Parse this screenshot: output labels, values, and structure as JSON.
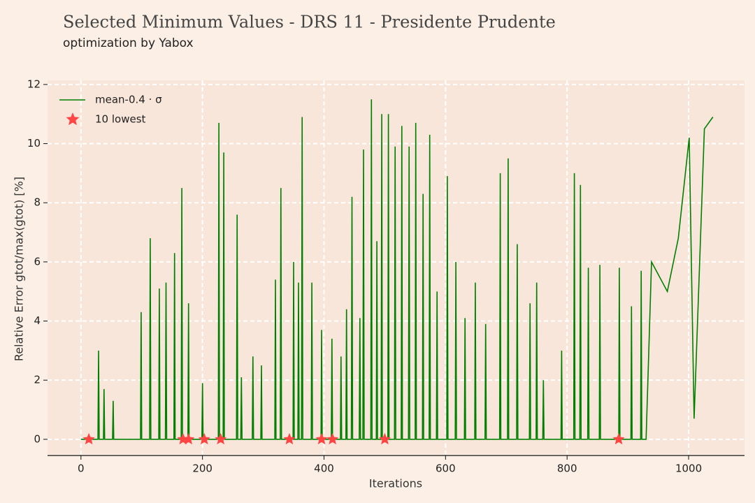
{
  "chart_data": {
    "type": "line",
    "title": "Selected Minimum Values - DRS 11 - Presidente Prudente",
    "subtitle": "optimization by Yabox",
    "x_label": "Iterations",
    "y_label": "Relative Error gtot/max(gtot) [%]",
    "xlim": [
      -55,
      1092
    ],
    "ylim": [
      -0.5,
      12.14
    ],
    "xticks": [
      0,
      200,
      400,
      600,
      800,
      1000
    ],
    "yticks": [
      0,
      2,
      4,
      6,
      8,
      10,
      12
    ],
    "grid": true,
    "legend": "upper left",
    "series": [
      {
        "name": "mean-0.4 · σ",
        "color": "#008000",
        "kind": "line",
        "x": [
          0,
          28,
          29,
          30,
          37,
          38,
          39,
          52,
          53,
          54,
          98,
          99,
          100,
          113,
          114,
          115,
          128,
          129,
          130,
          139,
          140,
          141,
          153,
          154,
          155,
          165,
          166,
          167,
          176,
          177,
          178,
          199,
          200,
          201,
          226,
          227,
          228,
          234,
          235,
          236,
          256,
          257,
          258,
          263,
          264,
          265,
          282,
          283,
          284,
          296,
          297,
          298,
          319,
          320,
          321,
          328,
          329,
          330,
          349,
          350,
          351,
          357,
          358,
          359,
          363,
          364,
          365,
          379,
          380,
          381,
          395,
          396,
          397,
          412,
          413,
          414,
          427,
          428,
          429,
          436,
          437,
          438,
          445,
          446,
          447,
          458,
          459,
          460,
          464,
          465,
          466,
          477,
          478,
          479,
          486,
          487,
          488,
          494,
          495,
          496,
          505,
          506,
          507,
          516,
          517,
          518,
          527,
          528,
          529,
          539,
          540,
          541,
          550,
          551,
          552,
          562,
          563,
          564,
          573,
          574,
          575,
          585,
          586,
          587,
          602,
          603,
          604,
          616,
          617,
          618,
          631,
          632,
          633,
          648,
          649,
          650,
          665,
          666,
          667,
          689,
          690,
          691,
          702,
          703,
          704,
          717,
          718,
          719,
          738,
          739,
          740,
          749,
          750,
          751,
          760,
          761,
          762,
          790,
          791,
          792,
          811,
          812,
          813,
          821,
          822,
          823,
          834,
          835,
          836,
          853,
          854,
          855,
          885,
          886,
          887,
          905,
          906,
          907,
          921,
          922,
          923,
          930,
          939,
          965,
          983,
          1001,
          1009,
          1026,
          1040
        ],
        "values": [
          0,
          0,
          3.0,
          0,
          0,
          1.7,
          0,
          0,
          1.3,
          0,
          0,
          4.3,
          0,
          0,
          6.8,
          0,
          0,
          5.1,
          0,
          0,
          5.3,
          0,
          0,
          6.3,
          0,
          0,
          8.5,
          0,
          0,
          4.6,
          0,
          0,
          1.9,
          0,
          0,
          10.7,
          0,
          0,
          9.7,
          0,
          0,
          7.6,
          0,
          0,
          2.1,
          0,
          0,
          2.8,
          0,
          0,
          2.5,
          0,
          0,
          5.4,
          0,
          0,
          8.5,
          0,
          0,
          6.0,
          0,
          0,
          5.3,
          0,
          0,
          10.9,
          0,
          0,
          5.3,
          0,
          0,
          3.7,
          0,
          0,
          3.4,
          0,
          0,
          2.8,
          0,
          0,
          4.4,
          0,
          0,
          8.2,
          0,
          0,
          4.1,
          0,
          0,
          9.8,
          0,
          0,
          11.5,
          0,
          0,
          6.7,
          0,
          0,
          11.0,
          0,
          0,
          11.0,
          0,
          0,
          9.9,
          0,
          0,
          10.6,
          0,
          0,
          9.9,
          0,
          0,
          10.7,
          0,
          0,
          8.3,
          0,
          0,
          10.3,
          0,
          0,
          5.0,
          0,
          0,
          8.9,
          0,
          0,
          6.0,
          0,
          0,
          4.1,
          0,
          0,
          5.3,
          0,
          0,
          3.9,
          0,
          0,
          9.0,
          0,
          0,
          9.5,
          0,
          0,
          6.6,
          0,
          0,
          4.6,
          0,
          0,
          5.3,
          0,
          0,
          2.0,
          0,
          0,
          3.0,
          0,
          0,
          9.0,
          0,
          0,
          8.6,
          0,
          0,
          5.8,
          0,
          0,
          5.9,
          0,
          0,
          5.8,
          0,
          0,
          4.5,
          0,
          0,
          5.7,
          0,
          0,
          6.0,
          5.0,
          6.8,
          10.2,
          0.7,
          10.5,
          10.9
        ]
      },
      {
        "name": "10 lowest",
        "color": "#ff4444",
        "kind": "scatter",
        "x": [
          13,
          168,
          177,
          203,
          230,
          343,
          396,
          414,
          500,
          885
        ],
        "values": [
          0,
          0,
          0,
          0,
          0,
          0,
          0,
          0,
          0,
          0
        ]
      }
    ]
  }
}
